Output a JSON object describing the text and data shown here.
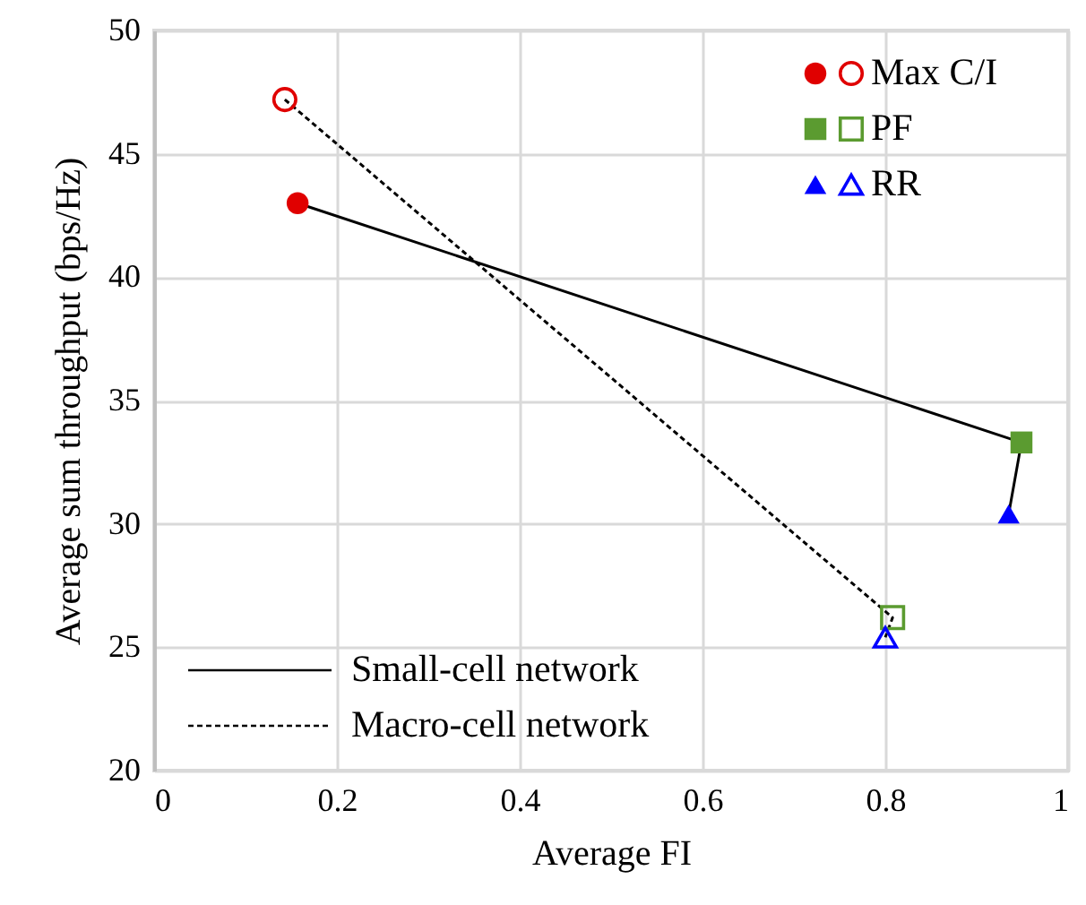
{
  "chart_data": {
    "type": "scatter",
    "xlabel": "Average FI",
    "ylabel": "Average sum throughput (bps/Hz)",
    "xlim": [
      0,
      1
    ],
    "xticks": [
      0,
      0.2,
      0.4,
      0.6,
      0.8,
      1
    ],
    "ylim": [
      20,
      50
    ],
    "yticks": [
      20,
      25,
      30,
      35,
      40,
      45,
      50
    ],
    "grid": true,
    "legend": "top right",
    "series": [
      {
        "name": "Small-cell network",
        "type": "line",
        "color": "#000000",
        "line_style": "solid",
        "x": [
          0.157,
          0.949,
          0.935
        ],
        "values": [
          43.0,
          33.3,
          30.4
        ]
      },
      {
        "name": "Macro-cell network",
        "type": "line",
        "color": "#000000",
        "line_style": "dashed",
        "x": [
          0.143,
          0.808,
          0.8
        ],
        "values": [
          47.2,
          26.2,
          25.4
        ]
      },
      {
        "name": "Max C/I",
        "color": "#e00000",
        "marker": "circle",
        "x": [
          0.157,
          0.143
        ],
        "values": [
          43.0,
          47.2
        ]
      },
      {
        "name": "PF",
        "color": "#5b9b30",
        "marker": "square",
        "x": [
          0.949,
          0.808
        ],
        "values": [
          33.3,
          26.2
        ]
      },
      {
        "name": "RR",
        "color": "#0000ff",
        "marker": "triangle",
        "x": [
          0.935,
          0.8
        ],
        "values": [
          30.4,
          25.4
        ]
      }
    ]
  }
}
